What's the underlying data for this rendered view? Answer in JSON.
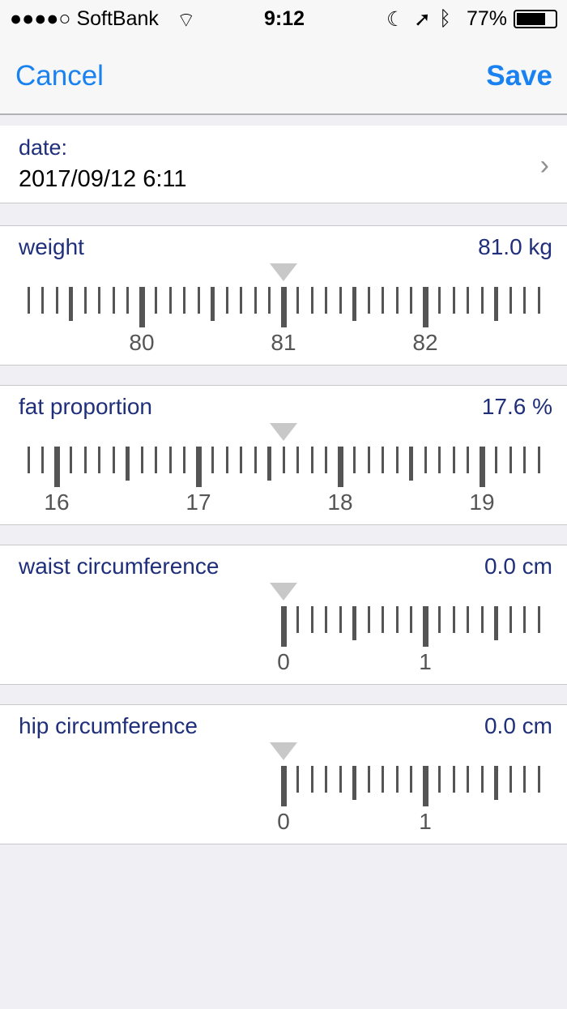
{
  "status_bar": {
    "carrier": "●●●●○ SoftBank",
    "time": "9:12",
    "battery": "77%",
    "icons": [
      "wifi-icon",
      "moon-icon",
      "location-icon",
      "bluetooth-icon",
      "battery-icon"
    ]
  },
  "nav": {
    "cancel": "Cancel",
    "save": "Save"
  },
  "date": {
    "label": "date:",
    "value": "2017/09/12 6:11"
  },
  "rulers": [
    {
      "label": "weight",
      "value": "81.0 kg",
      "current": 81.0,
      "min": null,
      "ticks_labels": [
        "80",
        "81",
        "82"
      ]
    },
    {
      "label": "fat proportion",
      "value": "17.6 %",
      "current": 17.6,
      "min": null,
      "ticks_labels": [
        "16",
        "17",
        "18",
        "19"
      ]
    },
    {
      "label": "waist circumference",
      "value": "0.0 cm",
      "current": 0.0,
      "min": 0,
      "ticks_labels": [
        "0",
        "1"
      ]
    },
    {
      "label": "hip circumference",
      "value": "0.0 cm",
      "current": 0.0,
      "min": 0,
      "ticks_labels": [
        "0",
        "1"
      ]
    }
  ],
  "colors": {
    "accent": "#1a82f0",
    "label": "#1f2f7a",
    "tick": "#555555"
  }
}
